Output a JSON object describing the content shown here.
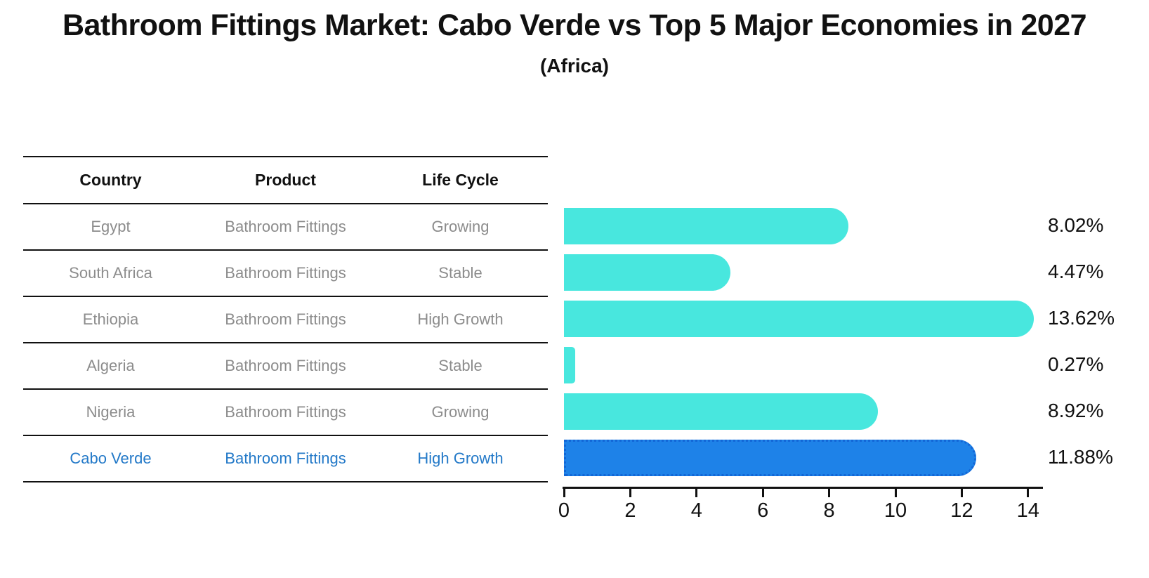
{
  "chart_data": {
    "type": "bar",
    "orientation": "horizontal",
    "title": "Bathroom Fittings Market: Cabo Verde vs Top 5 Major Economies in 2027",
    "subtitle": "(Africa)",
    "categories": [
      "Egypt",
      "South Africa",
      "Ethiopia",
      "Algeria",
      "Nigeria",
      "Cabo Verde"
    ],
    "values": [
      8.02,
      4.47,
      13.62,
      0.27,
      8.92,
      11.88
    ],
    "value_labels": [
      "8.02%",
      "4.47%",
      "13.62%",
      "0.27%",
      "8.92%",
      "11.88%"
    ],
    "xlim": [
      0,
      14
    ],
    "x_ticks": [
      "0",
      "2",
      "4",
      "6",
      "8",
      "10",
      "12",
      "14"
    ],
    "xlabel": "",
    "ylabel": "",
    "grid": false,
    "legend": "none",
    "highlight_index": 5,
    "bar_color": "#48e7de",
    "highlight_bar_color": "#1e82e8"
  },
  "table": {
    "headers": [
      "Country",
      "Product",
      "Life Cycle"
    ],
    "rows": [
      {
        "country": "Egypt",
        "product": "Bathroom Fittings",
        "life_cycle": "Growing",
        "highlight": false
      },
      {
        "country": "South Africa",
        "product": "Bathroom Fittings",
        "life_cycle": "Stable",
        "highlight": false
      },
      {
        "country": "Ethiopia",
        "product": "Bathroom Fittings",
        "life_cycle": "High Growth",
        "highlight": false
      },
      {
        "country": "Algeria",
        "product": "Bathroom Fittings",
        "life_cycle": "Stable",
        "highlight": false
      },
      {
        "country": "Nigeria",
        "product": "Bathroom Fittings",
        "life_cycle": "Growing",
        "highlight": false
      },
      {
        "country": "Cabo Verde",
        "product": "Bathroom Fittings",
        "life_cycle": "High Growth",
        "highlight": true
      }
    ]
  },
  "colors": {
    "bar": "#48e7de",
    "highlight_bar": "#1e82e8",
    "highlight_bar_border": "#1266d6",
    "highlight_text": "#2379c8",
    "row_text": "#8c8c8c",
    "heading_text": "#111111",
    "axis": "#111111"
  }
}
